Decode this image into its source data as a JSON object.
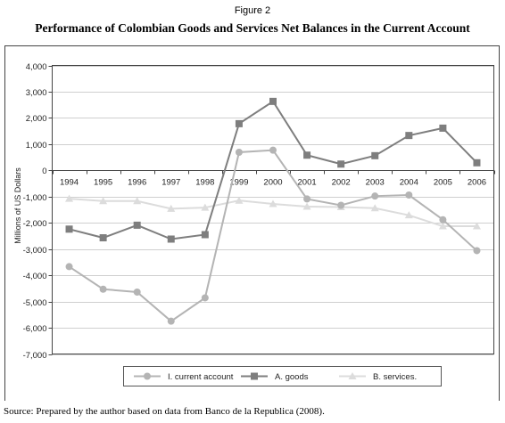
{
  "figure_label": "Figure 2",
  "source": "Source: Prepared by the author based on data from Banco de la Republica (2008).",
  "chart_data": {
    "type": "line",
    "title": "Performance of Colombian Goods and Services Net Balances in the Current Account",
    "xlabel": "",
    "ylabel": "Millions of US Dollars",
    "categories": [
      "1994",
      "1995",
      "1996",
      "1997",
      "1998",
      "1999",
      "2000",
      "2001",
      "2002",
      "2003",
      "2004",
      "2005",
      "2006"
    ],
    "ylim": [
      -7000,
      4000
    ],
    "yticks": [
      4000,
      3000,
      2000,
      1000,
      0,
      -1000,
      -2000,
      -3000,
      -4000,
      -5000,
      -6000,
      -7000
    ],
    "ytick_labels": [
      "4,000",
      "3,000",
      "2,000",
      "1,000",
      "0",
      "-1,000",
      "-2,000",
      "-3,000",
      "-4,000",
      "-5,000",
      "-6,000",
      "-7,000"
    ],
    "grid": true,
    "legend_position": "bottom",
    "series": [
      {
        "name": "I. current account",
        "marker": "circle",
        "color": "#b4b4b4",
        "values": [
          -3670,
          -4530,
          -4640,
          -5750,
          -4860,
          690,
          770,
          -1090,
          -1330,
          -980,
          -940,
          -1880,
          -3060
        ]
      },
      {
        "name": "A. goods",
        "marker": "square",
        "color": "#7e7e7e",
        "values": [
          -2240,
          -2570,
          -2090,
          -2620,
          -2450,
          1780,
          2630,
          580,
          240,
          560,
          1330,
          1610,
          290
        ]
      },
      {
        "name": "B. services.",
        "marker": "triangle",
        "color": "#dcdcdc",
        "values": [
          -1080,
          -1170,
          -1170,
          -1460,
          -1420,
          -1150,
          -1280,
          -1380,
          -1400,
          -1440,
          -1710,
          -2130,
          -2130
        ]
      }
    ]
  }
}
